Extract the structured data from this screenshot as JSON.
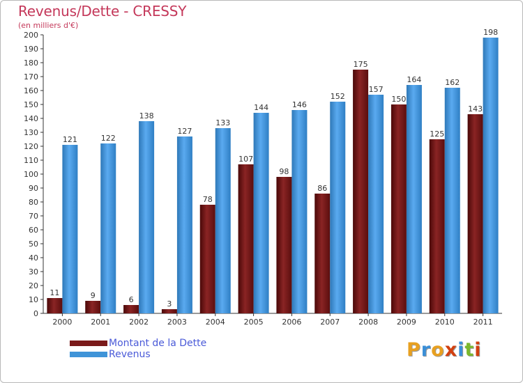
{
  "title": "Revenus/Dette - CRESSY",
  "subtitle": "(en milliers d'€)",
  "logo": {
    "text": "Proxiti",
    "letter_colors": [
      "#e8a020",
      "#3a8fd8",
      "#e8a020",
      "#d24010",
      "#3a8fd8",
      "#7bb82c",
      "#d24010"
    ]
  },
  "colors": {
    "dette": "#7a1a1a",
    "revenus": "#3f94d8",
    "title": "#c4385a",
    "legend_text": "#4a5ad8"
  },
  "chart_data": {
    "type": "bar",
    "categories": [
      "2000",
      "2001",
      "2002",
      "2003",
      "2004",
      "2005",
      "2006",
      "2007",
      "2008",
      "2009",
      "2010",
      "2011"
    ],
    "series": [
      {
        "name": "Montant de la Dette",
        "values": [
          11,
          9,
          6,
          3,
          78,
          107,
          98,
          86,
          175,
          150,
          125,
          143
        ]
      },
      {
        "name": "Revenus",
        "values": [
          121,
          122,
          138,
          127,
          133,
          144,
          146,
          152,
          157,
          164,
          162,
          198
        ]
      }
    ],
    "title": "Revenus/Dette - CRESSY",
    "subtitle": "(en milliers d'€)",
    "ylim": [
      0,
      200
    ],
    "ytick_step": 10,
    "grid": false,
    "legend": "bottom-left"
  }
}
